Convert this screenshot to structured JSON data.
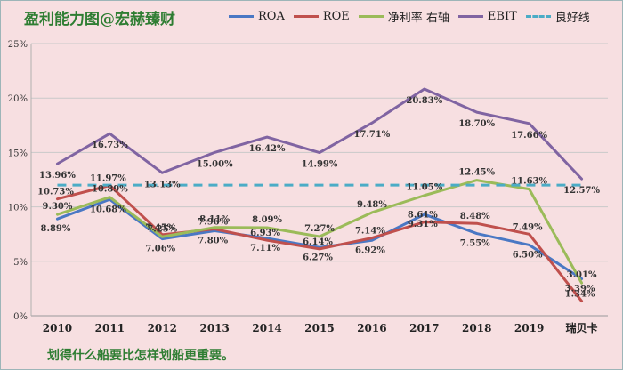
{
  "chart_data": {
    "type": "line",
    "title": "盈利能力图@宏赫臻财",
    "categories": [
      "2010",
      "2011",
      "2012",
      "2013",
      "2014",
      "2015",
      "2016",
      "2017",
      "2018",
      "2019",
      "瑞贝卡"
    ],
    "ylim": [
      0,
      25
    ],
    "yticks": [
      0,
      5,
      10,
      15,
      20,
      25
    ],
    "ytick_labels": [
      "0%",
      "5%",
      "10%",
      "15%",
      "20%",
      "25%"
    ],
    "grid": true,
    "legend_position": "top",
    "series": [
      {
        "name": "ROA",
        "color": "#4a78c4",
        "dashed": false,
        "values": [
          8.89,
          10.68,
          7.06,
          7.8,
          7.11,
          6.27,
          6.92,
          9.31,
          7.55,
          6.5,
          3.39
        ],
        "labels": [
          "8.89%",
          "10.68%",
          "7.06%",
          "7.80%",
          "7.11%",
          "6.27%",
          "6.92%",
          "9.31%",
          "7.55%",
          "6.50%",
          "3.39%"
        ]
      },
      {
        "name": "ROE",
        "color": "#c0504d",
        "dashed": false,
        "values": [
          10.73,
          11.97,
          7.45,
          7.96,
          6.93,
          6.14,
          7.14,
          8.61,
          8.48,
          7.49,
          1.34
        ],
        "labels": [
          "10.73%",
          "11.97%",
          "7.45%",
          "7.96%",
          "6.93%",
          "6.14%",
          "7.14%",
          "8.61%",
          "8.48%",
          "7.49%",
          "1.34%"
        ]
      },
      {
        "name": "净利率 右轴",
        "color": "#9bbb59",
        "dashed": false,
        "values": [
          9.3,
          10.89,
          7.25,
          8.11,
          8.09,
          7.27,
          9.48,
          11.05,
          12.45,
          11.63,
          3.01
        ],
        "labels": [
          "9.30%",
          "10.89%",
          "7.25%",
          "8.11%",
          "8.09%",
          "7.27%",
          "9.48%",
          "11.05%",
          "12.45%",
          "11.63%",
          "3.01%"
        ]
      },
      {
        "name": "EBIT",
        "color": "#8064a2",
        "dashed": false,
        "values": [
          13.96,
          16.73,
          13.13,
          15.0,
          16.42,
          14.99,
          17.71,
          20.83,
          18.7,
          17.66,
          12.57
        ],
        "labels": [
          "13.96%",
          "16.73%",
          "13.13%",
          "15.00%",
          "16.42%",
          "14.99%",
          "17.71%",
          "20.83%",
          "18.70%",
          "17.66%",
          "12.57%"
        ]
      },
      {
        "name": "良好线",
        "color": "#4bacc6",
        "dashed": true,
        "values": [
          12,
          12,
          12,
          12,
          12,
          12,
          12,
          12,
          12,
          12,
          12
        ],
        "labels": []
      }
    ]
  },
  "footer": "划得什么船要比怎样划船更重要。"
}
